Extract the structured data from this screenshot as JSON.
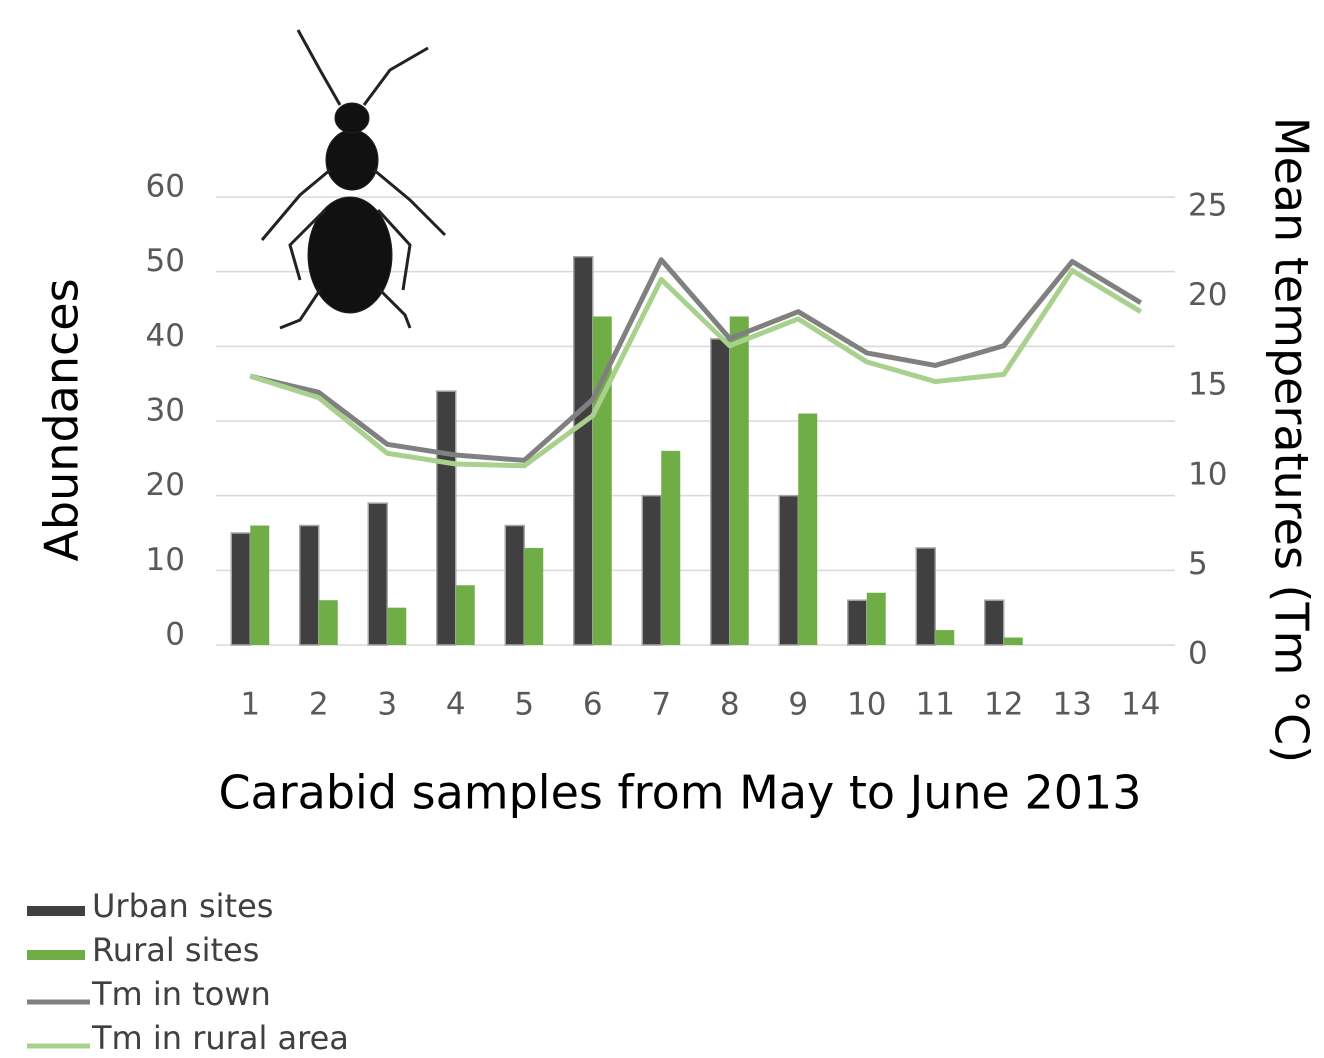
{
  "chart_data": {
    "type": "combo",
    "x_label": "Carabid samples from May to June 2013",
    "y_label": "Abundances",
    "y2_label": "Mean temperatures (Tm °C)",
    "categories": [
      "1",
      "2",
      "3",
      "4",
      "5",
      "6",
      "7",
      "8",
      "9",
      "10",
      "11",
      "12",
      "13",
      "14"
    ],
    "ylim": [
      0,
      60
    ],
    "yticks": [
      0,
      10,
      20,
      30,
      40,
      50,
      60
    ],
    "y2lim": [
      0,
      25
    ],
    "y2ticks": [
      0,
      5,
      10,
      15,
      20,
      25
    ],
    "grid": true,
    "series": [
      {
        "name": "Urban sites",
        "type": "bar",
        "color": "#404040",
        "values": [
          15,
          16,
          19,
          34,
          16,
          52,
          20,
          41,
          20,
          6,
          13,
          6,
          null,
          null
        ]
      },
      {
        "name": "Rural sites",
        "type": "bar",
        "color": "#70ad47",
        "values": [
          16,
          6,
          5,
          8,
          13,
          44,
          26,
          44,
          31,
          7,
          2,
          1,
          null,
          null
        ]
      },
      {
        "name": "Tm in town",
        "type": "line",
        "axis": "y2",
        "color": "#808080",
        "values": [
          15.0,
          14.1,
          11.2,
          10.6,
          10.3,
          13.7,
          21.5,
          17.1,
          18.6,
          16.3,
          15.6,
          16.7,
          21.4,
          19.1
        ]
      },
      {
        "name": "Tm in rural area",
        "type": "line",
        "axis": "y2",
        "color": "#a9d18e",
        "values": [
          15.0,
          13.8,
          10.7,
          10.1,
          10.0,
          12.8,
          20.4,
          16.7,
          18.2,
          15.8,
          14.7,
          15.1,
          20.9,
          18.6
        ]
      }
    ]
  }
}
